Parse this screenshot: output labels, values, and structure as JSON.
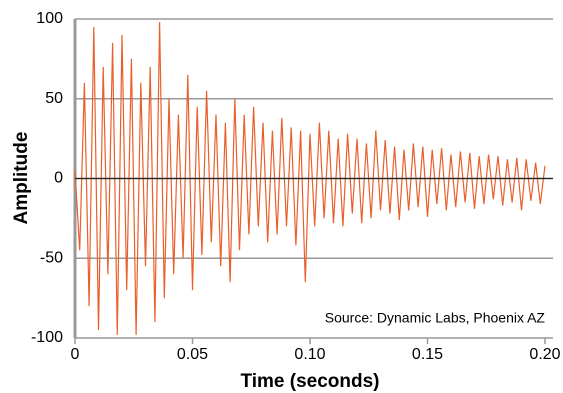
{
  "chart_data": {
    "type": "line",
    "xlabel": "Time (seconds)",
    "ylabel": "Amplitude",
    "annotation": "Source: Dynamic Labs, Phoenix AZ",
    "x": [
      0,
      0.002,
      0.004,
      0.006,
      0.008,
      0.01,
      0.012,
      0.014,
      0.016,
      0.018,
      0.02,
      0.022,
      0.024,
      0.026,
      0.028,
      0.03,
      0.032,
      0.034,
      0.036,
      0.038,
      0.04,
      0.042,
      0.044,
      0.046,
      0.048,
      0.05,
      0.052,
      0.054,
      0.056,
      0.058,
      0.06,
      0.062,
      0.064,
      0.066,
      0.068,
      0.07,
      0.072,
      0.074,
      0.076,
      0.078,
      0.08,
      0.082,
      0.084,
      0.086,
      0.088,
      0.09,
      0.092,
      0.094,
      0.096,
      0.098,
      0.1,
      0.102,
      0.104,
      0.106,
      0.108,
      0.11,
      0.112,
      0.114,
      0.116,
      0.118,
      0.12,
      0.122,
      0.124,
      0.126,
      0.128,
      0.13,
      0.132,
      0.134,
      0.136,
      0.138,
      0.14,
      0.142,
      0.144,
      0.146,
      0.148,
      0.15,
      0.152,
      0.154,
      0.156,
      0.158,
      0.16,
      0.162,
      0.164,
      0.166,
      0.168,
      0.17,
      0.172,
      0.174,
      0.176,
      0.178,
      0.18,
      0.182,
      0.184,
      0.186,
      0.188,
      0.19,
      0.192,
      0.194,
      0.196,
      0.198,
      0.2
    ],
    "series": [
      {
        "name": "Amplitude",
        "color": "#e8602c",
        "values": [
          5,
          -45,
          60,
          -80,
          95,
          -95,
          70,
          -60,
          85,
          -98,
          90,
          -70,
          75,
          -98,
          60,
          -55,
          70,
          -90,
          98,
          -75,
          50,
          -60,
          40,
          -50,
          65,
          -70,
          45,
          -48,
          55,
          -40,
          40,
          -55,
          35,
          -65,
          50,
          -45,
          40,
          -35,
          45,
          -30,
          35,
          -40,
          30,
          -35,
          38,
          -30,
          32,
          -42,
          30,
          -65,
          28,
          -30,
          35,
          -25,
          30,
          -28,
          25,
          -30,
          28,
          -22,
          25,
          -28,
          22,
          -25,
          30,
          -20,
          24,
          -22,
          20,
          -26,
          18,
          -20,
          22,
          -18,
          20,
          -24,
          18,
          -16,
          19,
          -20,
          15,
          -18,
          17,
          -15,
          16,
          -19,
          14,
          -16,
          15,
          -13,
          14,
          -17,
          12,
          -15,
          13,
          -20,
          12,
          -14,
          10,
          -16,
          8
        ]
      }
    ],
    "xlim": [
      0,
      0.2
    ],
    "ylim": [
      -100,
      100
    ],
    "xticks": [
      0,
      0.05,
      {
        "value": 0.1,
        "label": "0.10"
      },
      0.15,
      {
        "value": 0.2,
        "label": "0.20"
      }
    ],
    "yticks": [
      -100,
      -50,
      0,
      50,
      100
    ],
    "grid": true
  }
}
